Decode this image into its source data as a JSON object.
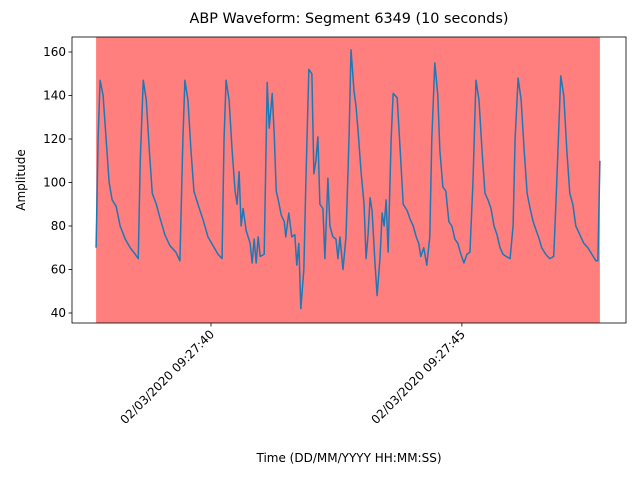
{
  "chart_data": {
    "type": "line",
    "title": "ABP Waveform: Segment 6349 (10 seconds)",
    "x_label": "Time (DD/MM/YYYY HH:MM:SS)",
    "y_label": "Amplitude",
    "xlim": [
      37.23,
      48.27
    ],
    "ylim": [
      35.4,
      166.9
    ],
    "xticks": [
      {
        "value": 40,
        "label": "02/03/2020 09:27:40"
      },
      {
        "value": 45,
        "label": "02/03/2020 09:27:45"
      }
    ],
    "yticks": [
      40,
      60,
      80,
      100,
      120,
      140,
      160
    ],
    "highlight": {
      "xrange": [
        37.71,
        47.75
      ],
      "color": "#ff0000",
      "opacity": 0.5
    },
    "series": [
      {
        "color": "#1f77b4",
        "x": [
          37.71,
          37.75,
          37.79,
          37.85,
          37.91,
          37.97,
          38.03,
          38.11,
          38.19,
          38.29,
          38.39,
          38.49,
          38.55,
          38.59,
          38.65,
          38.71,
          38.77,
          38.83,
          38.91,
          38.98,
          39.08,
          39.18,
          39.3,
          39.38,
          39.44,
          39.48,
          39.54,
          39.6,
          39.66,
          39.74,
          39.84,
          39.94,
          40.04,
          40.14,
          40.22,
          40.26,
          40.3,
          40.36,
          40.42,
          40.48,
          40.52,
          40.56,
          40.6,
          40.64,
          40.7,
          40.78,
          40.82,
          40.86,
          40.9,
          40.94,
          40.98,
          41.06,
          41.12,
          41.16,
          41.22,
          41.26,
          41.3,
          41.34,
          41.4,
          41.46,
          41.49,
          41.55,
          41.61,
          41.67,
          41.71,
          41.75,
          41.79,
          41.85,
          41.89,
          41.95,
          42.01,
          42.05,
          42.09,
          42.13,
          42.17,
          42.23,
          42.27,
          42.33,
          42.37,
          42.43,
          42.49,
          42.53,
          42.57,
          42.63,
          42.69,
          42.75,
          42.79,
          42.85,
          42.89,
          42.93,
          42.99,
          43.05,
          43.09,
          43.13,
          43.17,
          43.21,
          43.27,
          43.31,
          43.37,
          43.41,
          43.45,
          43.49,
          43.53,
          43.59,
          43.63,
          43.71,
          43.77,
          43.83,
          43.91,
          43.97,
          44.03,
          44.09,
          44.14,
          44.18,
          44.24,
          44.3,
          44.36,
          44.4,
          44.46,
          44.52,
          44.56,
          44.62,
          44.68,
          44.74,
          44.8,
          44.86,
          44.92,
          44.98,
          45.04,
          45.1,
          45.16,
          45.22,
          45.28,
          45.34,
          45.4,
          45.46,
          45.52,
          45.58,
          45.64,
          45.7,
          45.76,
          45.82,
          45.88,
          45.96,
          46.02,
          46.06,
          46.12,
          46.18,
          46.24,
          46.3,
          46.36,
          46.42,
          46.48,
          46.54,
          46.59,
          46.67,
          46.75,
          46.83,
          46.89,
          46.97,
          47.03,
          47.09,
          47.15,
          47.21,
          47.27,
          47.35,
          47.43,
          47.51,
          47.59,
          47.67,
          47.71,
          47.75
        ],
        "values": [
          70,
          120,
          147,
          140,
          120,
          100,
          92,
          89,
          80,
          74,
          70,
          67,
          65,
          110,
          147,
          138,
          115,
          95,
          90,
          84,
          76,
          71,
          68,
          64,
          120,
          147,
          138,
          115,
          96,
          90,
          83,
          75,
          71,
          67,
          65,
          120,
          147,
          138,
          115,
          96,
          90,
          105,
          80,
          88,
          78,
          72,
          63,
          74,
          63,
          75,
          66,
          67,
          146,
          125,
          141,
          122,
          96,
          92,
          85,
          82,
          75,
          86,
          75,
          76,
          62,
          72,
          42,
          60,
          100,
          152,
          150,
          104,
          110,
          121,
          90,
          88,
          65,
          102,
          80,
          75,
          74,
          65,
          75,
          60,
          75,
          120,
          161,
          142,
          135,
          124,
          105,
          90,
          65,
          76,
          93,
          87,
          62,
          48,
          66,
          86,
          80,
          92,
          68,
          120,
          141,
          139,
          115,
          90,
          87,
          83,
          80,
          75,
          72,
          66,
          70,
          62,
          75,
          120,
          155,
          140,
          115,
          98,
          96,
          82,
          80,
          74,
          72,
          67,
          63,
          67,
          68,
          100,
          147,
          138,
          115,
          95,
          92,
          88,
          80,
          76,
          70,
          67,
          66,
          65,
          80,
          120,
          148,
          138,
          115,
          95,
          88,
          82,
          78,
          74,
          70,
          67,
          65,
          66,
          100,
          149,
          140,
          115,
          95,
          90,
          80,
          76,
          72,
          70,
          67,
          64,
          64,
          110
        ]
      }
    ]
  }
}
